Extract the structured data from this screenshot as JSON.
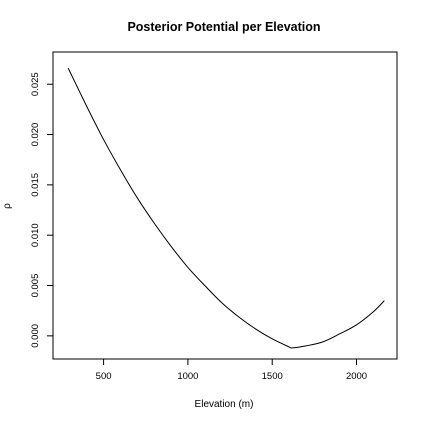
{
  "chart_data": {
    "type": "line",
    "title": "Posterior Potential per Elevation",
    "xlabel": "Elevation (m)",
    "ylabel": "ρ",
    "xlim": [
      200,
      2240
    ],
    "ylim": [
      -0.0023,
      0.0282
    ],
    "x_ticks": [
      500,
      1000,
      1500,
      2000
    ],
    "x_tick_labels": [
      "500",
      "1000",
      "1500",
      "2000"
    ],
    "y_ticks": [
      0.0,
      0.005,
      0.01,
      0.015,
      0.02,
      0.025
    ],
    "y_tick_labels": [
      "0.000",
      "0.005",
      "0.010",
      "0.015",
      "0.020",
      "0.025"
    ],
    "grid": false,
    "line_color": "#000000",
    "series": [
      {
        "x": [
          290,
          400,
          500,
          600,
          700,
          800,
          900,
          1000,
          1100,
          1200,
          1300,
          1400,
          1500,
          1600,
          1620,
          1700,
          1800,
          1900,
          2000,
          2100,
          2165
        ],
        "values": [
          0.0266,
          0.0228,
          0.0195,
          0.0165,
          0.0137,
          0.0112,
          0.0089,
          0.0068,
          0.005,
          0.0033,
          0.0019,
          0.0007,
          -0.0003,
          -0.0011,
          -0.0012,
          -0.001,
          -0.0006,
          0.0002,
          0.0011,
          0.0024,
          0.0035
        ]
      }
    ]
  }
}
